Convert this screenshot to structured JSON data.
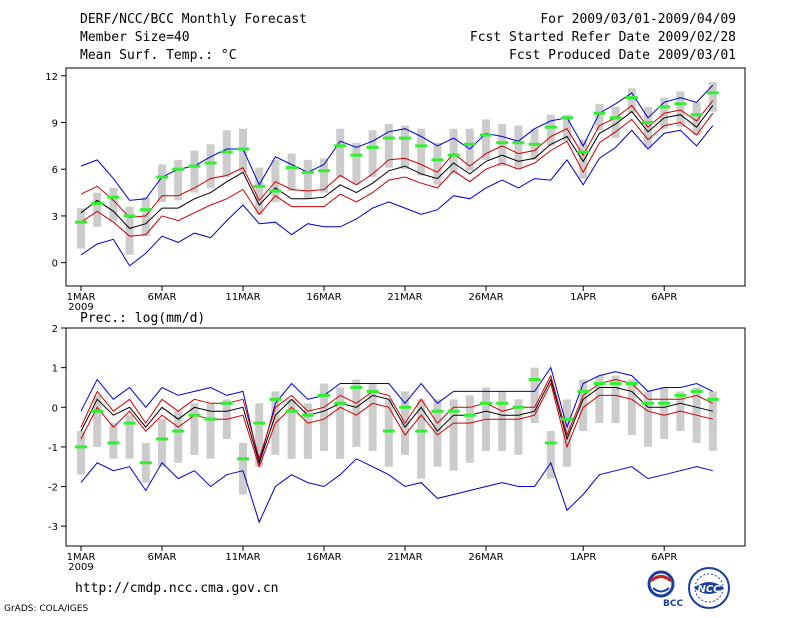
{
  "header": {
    "title": "DERF/NCC/BCC Monthly Forecast",
    "member_size": "Member Size=40",
    "variable": "Mean Surf. Temp.: °C",
    "period": "For 2009/03/01-2009/04/09",
    "started": "Fcst Started Refer Date 2009/02/28",
    "produced": "Fcst Produced Date 2009/03/01"
  },
  "footer": {
    "url": "http://cmdp.ncc.cma.gov.cn",
    "credit": "GrADS: COLA/IGES",
    "logo_left_text": "BCC",
    "logo_right_text": "NCC"
  },
  "colors": {
    "envelope": "#0000cc",
    "spread": "#cc0000",
    "mean": "#000000",
    "median": "#33ee33",
    "box": "#cccccc"
  },
  "chart_data": [
    {
      "type": "line",
      "title": "Mean Surf. Temp.: °C",
      "x_tick_labels": [
        "1MAR",
        "6MAR",
        "11MAR",
        "16MAR",
        "21MAR",
        "26MAR",
        "1APR",
        "6APR"
      ],
      "x_tick_days": [
        1,
        6,
        11,
        16,
        21,
        26,
        32,
        37
      ],
      "year_label": "2009",
      "ylim": [
        -1.5,
        12.5
      ],
      "yticks": [
        0,
        3,
        6,
        9,
        12
      ],
      "x": [
        1,
        2,
        3,
        4,
        5,
        6,
        7,
        8,
        9,
        10,
        11,
        12,
        13,
        14,
        15,
        16,
        17,
        18,
        19,
        20,
        21,
        22,
        23,
        24,
        25,
        26,
        27,
        28,
        29,
        30,
        31,
        32,
        33,
        34,
        35,
        36,
        37,
        38,
        39,
        40
      ],
      "series": [
        {
          "name": "max",
          "values": [
            6.2,
            6.6,
            5.4,
            4.0,
            4.1,
            5.5,
            6.0,
            6.2,
            6.8,
            7.3,
            7.3,
            5.0,
            6.8,
            6.3,
            5.8,
            6.3,
            7.8,
            7.4,
            7.8,
            8.4,
            8.6,
            8.1,
            7.5,
            8.0,
            7.3,
            8.3,
            8.1,
            7.8,
            8.6,
            9.1,
            9.3,
            7.5,
            9.6,
            10.2,
            10.9,
            9.3,
            10.3,
            10.6,
            10.3,
            11.4
          ]
        },
        {
          "name": "p75",
          "values": [
            4.4,
            4.9,
            4.0,
            2.9,
            3.0,
            4.3,
            4.3,
            4.8,
            5.4,
            5.6,
            6.1,
            4.0,
            5.2,
            4.7,
            4.6,
            4.7,
            5.6,
            5.0,
            5.7,
            6.6,
            6.7,
            6.3,
            5.8,
            7.0,
            6.2,
            7.0,
            7.5,
            7.0,
            7.2,
            8.1,
            8.6,
            6.9,
            8.8,
            9.3,
            10.1,
            8.7,
            9.6,
            9.8,
            9.1,
            10.4
          ]
        },
        {
          "name": "mean",
          "values": [
            3.2,
            4.0,
            3.3,
            2.2,
            2.5,
            3.5,
            3.5,
            4.1,
            4.5,
            5.2,
            5.8,
            3.7,
            4.8,
            4.1,
            4.1,
            4.2,
            5.0,
            4.5,
            5.1,
            5.9,
            6.2,
            5.7,
            5.4,
            6.4,
            5.7,
            6.5,
            6.9,
            6.5,
            6.7,
            7.6,
            8.1,
            6.5,
            8.3,
            8.9,
            9.7,
            8.4,
            9.3,
            9.5,
            8.7,
            10.1
          ]
        },
        {
          "name": "p25",
          "values": [
            2.6,
            3.3,
            2.6,
            1.7,
            1.8,
            3.0,
            2.7,
            3.2,
            3.7,
            4.1,
            4.7,
            3.1,
            4.3,
            3.6,
            3.6,
            3.6,
            4.4,
            3.9,
            4.5,
            5.3,
            5.5,
            5.1,
            4.8,
            5.9,
            5.2,
            6.0,
            6.4,
            6.0,
            6.4,
            7.2,
            7.8,
            5.8,
            7.7,
            8.4,
            9.2,
            7.9,
            8.8,
            9.0,
            8.2,
            9.6
          ]
        },
        {
          "name": "min",
          "values": [
            0.5,
            1.2,
            1.5,
            -0.2,
            0.6,
            1.7,
            1.3,
            1.9,
            1.6,
            2.7,
            3.7,
            2.5,
            2.6,
            1.8,
            2.5,
            2.3,
            2.3,
            2.8,
            3.5,
            3.9,
            3.5,
            3.1,
            3.4,
            4.3,
            4.1,
            4.8,
            5.3,
            4.8,
            5.4,
            5.3,
            6.6,
            5.0,
            6.7,
            7.4,
            8.5,
            7.3,
            8.3,
            8.5,
            7.5,
            8.8
          ]
        },
        {
          "name": "median",
          "values": [
            2.6,
            3.8,
            4.2,
            3.0,
            3.4,
            5.5,
            6.0,
            6.2,
            6.4,
            7.1,
            7.3,
            4.9,
            4.6,
            6.1,
            5.8,
            5.9,
            7.5,
            6.9,
            7.4,
            8.0,
            8.0,
            7.5,
            6.6,
            6.9,
            7.6,
            8.2,
            7.7,
            7.7,
            7.6,
            8.7,
            9.3,
            7.1,
            9.6,
            9.3,
            10.6,
            9.0,
            10.0,
            10.2,
            9.5,
            10.9
          ]
        },
        {
          "name": "box_top",
          "values": [
            3.5,
            4.5,
            4.8,
            3.6,
            4.2,
            6.3,
            6.6,
            7.2,
            7.6,
            8.5,
            8.6,
            6.1,
            6.6,
            7.0,
            6.6,
            6.7,
            8.6,
            7.7,
            8.5,
            8.9,
            8.8,
            8.6,
            7.7,
            8.6,
            8.6,
            9.2,
            8.9,
            8.8,
            8.6,
            9.5,
            9.5,
            7.9,
            10.2,
            10.0,
            11.2,
            10.0,
            10.6,
            11.0,
            10.3,
            11.6
          ]
        },
        {
          "name": "box_bottom",
          "values": [
            0.9,
            2.3,
            2.7,
            0.5,
            1.7,
            3.9,
            4.0,
            4.5,
            4.8,
            5.5,
            5.8,
            3.1,
            3.9,
            4.6,
            4.1,
            4.5,
            5.5,
            5.0,
            5.5,
            6.1,
            6.0,
            5.6,
            5.0,
            5.7,
            5.9,
            6.6,
            6.2,
            6.0,
            6.6,
            7.5,
            7.8,
            5.4,
            8.5,
            8.0,
            9.6,
            7.4,
            8.6,
            8.7,
            8.2,
            9.7
          ]
        }
      ]
    },
    {
      "type": "line",
      "title": "Prec.: log(mm/d)",
      "x_tick_labels": [
        "1MAR",
        "6MAR",
        "11MAR",
        "16MAR",
        "21MAR",
        "26MAR",
        "1APR",
        "6APR"
      ],
      "x_tick_days": [
        1,
        6,
        11,
        16,
        21,
        26,
        32,
        37
      ],
      "year_label": "2009",
      "ylim": [
        -3.5,
        2.0
      ],
      "yticks": [
        -3,
        -2,
        -1,
        0,
        1,
        2
      ],
      "x": [
        1,
        2,
        3,
        4,
        5,
        6,
        7,
        8,
        9,
        10,
        11,
        12,
        13,
        14,
        15,
        16,
        17,
        18,
        19,
        20,
        21,
        22,
        23,
        24,
        25,
        26,
        27,
        28,
        29,
        30,
        31,
        32,
        33,
        34,
        35,
        36,
        37,
        38,
        39,
        40
      ],
      "series": [
        {
          "name": "max",
          "values": [
            -0.1,
            0.7,
            0.2,
            0.5,
            0.0,
            0.5,
            0.3,
            0.4,
            0.5,
            0.3,
            0.4,
            -1.4,
            0.1,
            0.6,
            0.2,
            0.3,
            0.6,
            0.6,
            0.6,
            0.6,
            0.1,
            0.6,
            0.1,
            0.4,
            0.4,
            0.4,
            0.4,
            0.4,
            0.4,
            1.0,
            -0.5,
            0.6,
            0.8,
            0.9,
            0.8,
            0.4,
            0.5,
            0.5,
            0.6,
            0.4
          ]
        },
        {
          "name": "p75",
          "values": [
            -0.5,
            0.4,
            -0.1,
            0.2,
            -0.4,
            0.2,
            -0.1,
            0.2,
            0.1,
            0.1,
            0.2,
            -1.3,
            0.0,
            0.3,
            -0.1,
            0.0,
            0.3,
            0.1,
            0.4,
            0.3,
            -0.4,
            0.2,
            -0.4,
            0.0,
            0.0,
            0.1,
            -0.1,
            0.0,
            0.0,
            0.8,
            -0.7,
            0.3,
            0.6,
            0.7,
            0.6,
            0.2,
            0.2,
            0.2,
            0.3,
            0.1
          ]
        },
        {
          "name": "mean",
          "values": [
            -0.6,
            0.2,
            -0.2,
            0.0,
            -0.5,
            0.0,
            -0.3,
            0.0,
            -0.1,
            -0.1,
            0.0,
            -1.4,
            -0.2,
            0.2,
            -0.2,
            -0.1,
            0.1,
            0.0,
            0.3,
            0.2,
            -0.5,
            0.0,
            -0.6,
            -0.2,
            -0.2,
            -0.1,
            -0.2,
            -0.2,
            -0.1,
            0.7,
            -0.8,
            0.2,
            0.5,
            0.5,
            0.4,
            0.0,
            0.0,
            0.1,
            0.0,
            -0.1
          ]
        },
        {
          "name": "p25",
          "values": [
            -0.8,
            0.0,
            -0.5,
            -0.1,
            -0.6,
            -0.2,
            -0.5,
            -0.2,
            -0.3,
            -0.3,
            -0.2,
            -1.5,
            -0.4,
            0.0,
            -0.4,
            -0.3,
            0.0,
            -0.2,
            0.1,
            0.0,
            -0.7,
            -0.2,
            -0.7,
            -0.4,
            -0.4,
            -0.3,
            -0.3,
            -0.3,
            -0.2,
            0.6,
            -1.0,
            0.0,
            0.3,
            0.3,
            0.2,
            -0.1,
            -0.2,
            -0.1,
            -0.2,
            -0.3
          ]
        },
        {
          "name": "min",
          "values": [
            -1.9,
            -1.4,
            -1.6,
            -1.5,
            -2.1,
            -1.4,
            -1.8,
            -1.6,
            -2.0,
            -1.7,
            -1.6,
            -2.9,
            -2.0,
            -1.7,
            -1.9,
            -2.0,
            -1.7,
            -1.3,
            -1.5,
            -1.7,
            -2.0,
            -1.9,
            -2.3,
            -2.2,
            -2.1,
            -2.0,
            -1.9,
            -2.0,
            -2.0,
            -1.4,
            -2.6,
            -2.2,
            -1.7,
            -1.6,
            -1.5,
            -1.8,
            -1.7,
            -1.6,
            -1.5,
            -1.6
          ]
        },
        {
          "name": "median",
          "values": [
            -1.0,
            -0.1,
            -0.9,
            -0.4,
            -1.4,
            -0.8,
            -0.6,
            -0.2,
            -0.3,
            0.1,
            -1.3,
            -0.4,
            0.2,
            -0.1,
            -0.2,
            0.3,
            0.1,
            0.5,
            0.4,
            -0.6,
            0.0,
            -0.6,
            -0.1,
            -0.1,
            -0.2,
            0.1,
            0.1,
            0.0,
            0.7,
            -0.9,
            -0.3,
            0.4,
            0.6,
            0.6,
            0.6,
            0.1,
            0.1,
            0.3,
            0.4,
            0.2
          ]
        },
        {
          "name": "box_top",
          "values": [
            -0.6,
            0.3,
            -0.4,
            -0.2,
            -0.9,
            -0.3,
            -0.1,
            0.1,
            0.1,
            0.2,
            -0.9,
            0.1,
            0.4,
            0.2,
            0.1,
            0.6,
            0.5,
            0.7,
            0.6,
            0.2,
            0.4,
            0.2,
            0.2,
            0.2,
            0.3,
            0.5,
            0.4,
            0.2,
            1.0,
            -0.6,
            0.2,
            0.7,
            0.8,
            0.8,
            0.7,
            0.4,
            0.5,
            0.4,
            0.5,
            0.4
          ]
        },
        {
          "name": "box_bottom",
          "values": [
            -1.7,
            -1.0,
            -1.3,
            -1.3,
            -1.9,
            -1.5,
            -1.4,
            -1.2,
            -1.3,
            -0.8,
            -2.2,
            -1.5,
            -1.2,
            -1.3,
            -1.3,
            -1.1,
            -1.3,
            -1.0,
            -1.1,
            -1.5,
            -1.2,
            -1.8,
            -1.5,
            -1.6,
            -1.4,
            -1.1,
            -1.1,
            -1.2,
            -0.4,
            -1.8,
            -1.5,
            -0.6,
            -0.4,
            -0.4,
            -0.7,
            -1.0,
            -0.8,
            -0.6,
            -0.9,
            -1.1
          ]
        }
      ]
    }
  ]
}
